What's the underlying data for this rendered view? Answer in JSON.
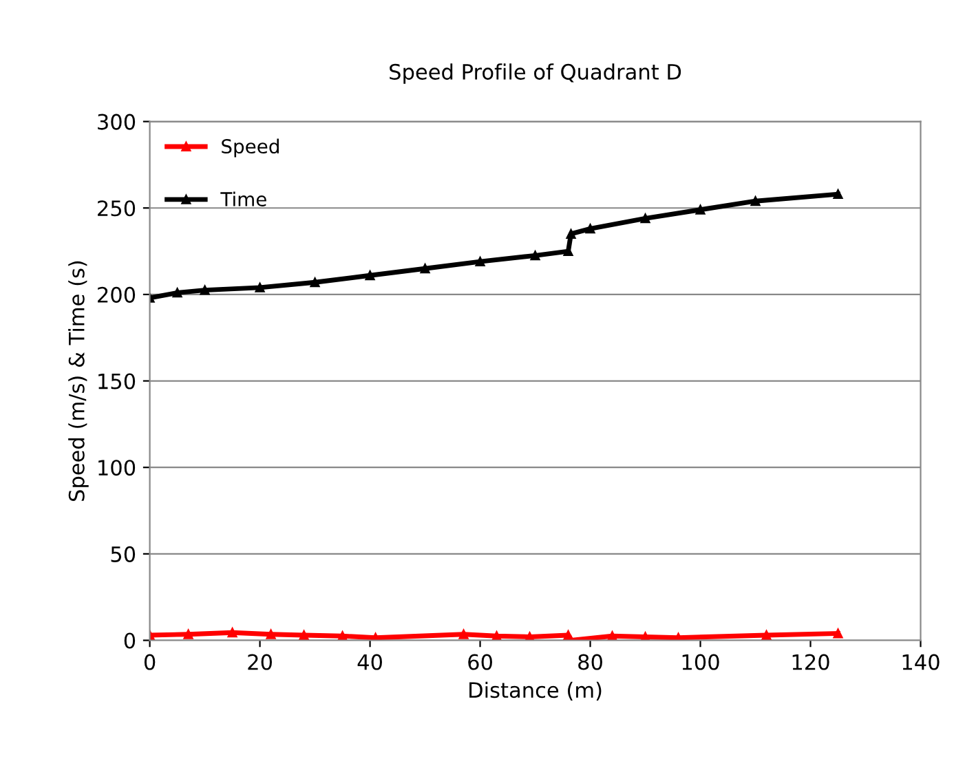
{
  "chart_data": {
    "type": "line",
    "title": "Speed Profile of Quadrant D",
    "xlabel": "Distance (m)",
    "ylabel": "Speed (m/s) & Time (s)",
    "series": [
      {
        "name": "Speed",
        "color": "#ff0000",
        "x": [
          0,
          7,
          15,
          22,
          28,
          35,
          41,
          57,
          63,
          69,
          76,
          76.5,
          84,
          90,
          96,
          112,
          125
        ],
        "values": [
          3,
          3.5,
          4.5,
          3.5,
          3,
          2.5,
          1.5,
          3.5,
          2.5,
          2,
          3,
          0,
          2.5,
          2,
          1.5,
          3,
          4
        ]
      },
      {
        "name": "Time",
        "color": "#000000",
        "x": [
          0,
          5,
          10,
          20,
          30,
          40,
          50,
          60,
          70,
          76,
          76.5,
          80,
          90,
          100,
          110,
          125
        ],
        "values": [
          198,
          201,
          202.5,
          204,
          207,
          211,
          215,
          219,
          222.5,
          225,
          235,
          238,
          244,
          249,
          254,
          258
        ]
      }
    ],
    "xlim": [
      0,
      140
    ],
    "xticks": [
      0,
      20,
      40,
      60,
      80,
      100,
      120,
      140
    ],
    "ylim": [
      0,
      300
    ],
    "yticks": [
      0,
      50,
      100,
      150,
      200,
      250,
      300
    ],
    "grid": "y",
    "legend": "top left",
    "marker": "triangle",
    "line_style": "solid"
  }
}
